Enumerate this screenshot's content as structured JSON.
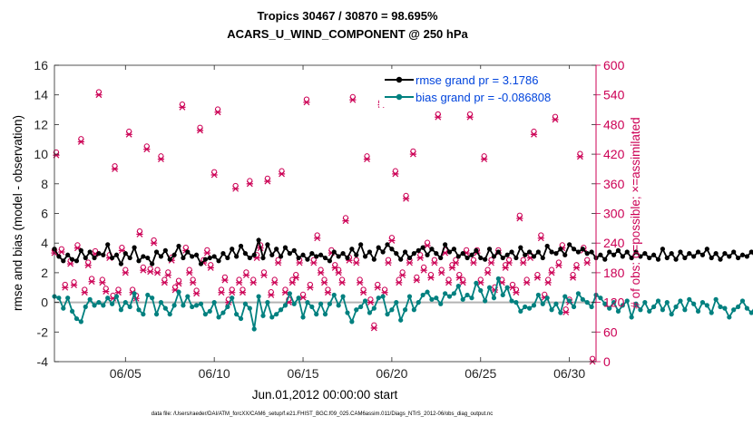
{
  "chart_data": {
    "type": "line",
    "title": "Tropics 30467 / 30870 = 98.695%",
    "subtitle": "ACARS_U_WIND_COMPONENT @ 250 hPa",
    "xlabel": "Jun.01,2012 00:00:00 start",
    "ylabel": "rmse and bias (model - observation)",
    "y2label": "# of obs: o=possible; ×=assimilated",
    "footer": "data file: /Users/raeder/DAI/ATM_forcXX/CAM6_setup/f.e21.FHIST_BGC.f09_025.CAM6assim.011/Diags_NTrS_2012-06/obs_diag_output.nc",
    "xlim": [
      1,
      31.5
    ],
    "ylim": [
      -4,
      16
    ],
    "y2lim": [
      0,
      600
    ],
    "xticks": [
      5,
      10,
      15,
      20,
      25,
      30
    ],
    "xtick_labels": [
      "06/05",
      "06/10",
      "06/15",
      "06/20",
      "06/25",
      "06/30"
    ],
    "yticks": [
      -4,
      -2,
      0,
      2,
      4,
      6,
      8,
      10,
      12,
      14,
      16
    ],
    "ytick_labels": [
      "-4",
      "-2",
      "0",
      "2",
      "4",
      "6",
      "8",
      "10",
      "12",
      "14",
      "16"
    ],
    "y2ticks": [
      0,
      60,
      120,
      180,
      240,
      300,
      360,
      420,
      480,
      540,
      600
    ],
    "y2tick_labels": [
      "0",
      "60",
      "120",
      "180",
      "240",
      "300",
      "360",
      "420",
      "480",
      "540",
      "600"
    ],
    "x_step_days": 0.25,
    "x_start": 1.0,
    "legend_position": "top-right",
    "legend": [
      "rmse grand pr = 3.1786",
      "bias grand pr = -0.086808"
    ],
    "zero_line": 0,
    "colors": {
      "rmse": "#000000",
      "bias": "#00807f",
      "obs": "#cc0055",
      "zero": "#b3b3b3",
      "legend_text": "#0044dd"
    },
    "series": [
      {
        "name": "rmse",
        "axis": "left",
        "values": [
          3.6,
          3.1,
          2.8,
          3.2,
          2.9,
          2.8,
          3.5,
          3.0,
          3.4,
          3.0,
          3.3,
          3.2,
          3.9,
          3.0,
          3.2,
          2.6,
          3.3,
          3.0,
          3.7,
          2.8,
          3.1,
          3.0,
          2.6,
          3.4,
          3.1,
          3.5,
          2.9,
          3.2,
          3.8,
          3.0,
          3.4,
          3.1,
          3.2,
          2.6,
          2.9,
          3.0,
          3.1,
          2.8,
          3.3,
          3.0,
          3.6,
          3.1,
          3.8,
          3.3,
          3.0,
          3.2,
          4.2,
          3.0,
          3.9,
          3.2,
          3.6,
          3.1,
          3.7,
          3.3,
          3.5,
          3.0,
          3.2,
          2.9,
          3.3,
          3.1,
          3.2,
          3.0,
          2.8,
          3.4,
          3.1,
          3.3,
          3.0,
          3.6,
          3.2,
          3.9,
          3.1,
          3.4,
          2.9,
          3.7,
          3.4,
          3.9,
          3.6,
          3.3,
          2.9,
          3.4,
          3.0,
          3.3,
          3.5,
          3.7,
          3.2,
          3.6,
          3.3,
          3.0,
          3.9,
          3.4,
          3.6,
          3.1,
          3.3,
          3.0,
          3.2,
          3.5,
          3.0,
          2.9,
          3.6,
          3.1,
          3.4,
          3.0,
          3.2,
          3.4,
          3.0,
          3.7,
          3.2,
          3.4,
          3.1,
          3.4,
          3.0,
          3.8,
          3.4,
          3.3,
          3.6,
          3.2,
          3.9,
          3.6,
          3.4,
          3.6,
          3.3,
          3.4,
          3.0,
          3.2,
          2.9,
          3.4,
          3.2,
          3.5,
          3.1,
          3.4,
          3.0,
          3.4,
          3.1,
          3.3,
          3.0,
          3.2,
          2.9,
          3.6,
          3.0,
          3.3,
          2.9,
          3.4,
          3.0,
          3.3,
          3.1,
          3.4,
          3.2,
          3.6,
          3.0,
          3.3,
          2.9,
          3.3,
          3.1,
          3.4,
          3.0,
          3.2,
          3.1,
          3.4,
          3.0,
          3.3,
          3.2,
          3.6,
          3.0,
          3.3,
          3.1,
          3.4,
          3.0,
          3.4,
          3.1,
          3.3,
          3.0,
          3.4,
          2.9,
          3.6,
          3.3,
          3.0,
          2.8,
          3.1,
          3.0,
          3.3,
          3.1,
          3.4,
          3.0,
          3.2,
          2.9,
          3.3,
          3.1,
          3.4,
          3.0,
          3.2,
          3.1,
          3.6,
          3.3,
          3.4,
          3.2,
          3.0,
          3.6,
          3.1,
          3.0,
          3.1,
          2.9,
          3.0,
          3.3,
          2.9,
          3.1,
          3.0,
          3.4,
          3.6,
          3.4,
          3.0,
          3.1,
          3.1,
          3.0,
          3.0,
          3.0,
          3.0,
          3.0
        ]
      },
      {
        "name": "bias",
        "axis": "left",
        "values": [
          0.4,
          0.3,
          -0.4,
          0.3,
          -0.6,
          -1.1,
          -1.3,
          -0.3,
          0.2,
          -0.2,
          0.0,
          -0.2,
          0.3,
          -0.1,
          0.4,
          -0.5,
          0.0,
          -0.3,
          0.6,
          -0.5,
          -0.8,
          0.5,
          0.3,
          -0.8,
          0.0,
          -0.4,
          -0.8,
          -0.2,
          0.7,
          -0.2,
          0.4,
          -0.3,
          -0.2,
          -0.1,
          -0.8,
          -0.6,
          0.0,
          -1.0,
          -0.7,
          -0.3,
          0.3,
          -0.8,
          -1.1,
          -0.1,
          -0.4,
          -1.8,
          0.4,
          -0.9,
          0.0,
          -1.0,
          -0.8,
          -0.5,
          -0.2,
          0.6,
          -0.1,
          0.3,
          -1.0,
          0.0,
          -0.3,
          -0.8,
          -0.1,
          -0.8,
          -0.1,
          0.5,
          -0.2,
          0.4,
          -0.7,
          -1.3,
          -0.5,
          -0.3,
          0.1,
          -0.7,
          -0.4,
          0.3,
          0.4,
          -0.8,
          -0.5,
          0.0,
          -1.2,
          -0.5,
          0.4,
          -0.5,
          0.0,
          0.5,
          0.7,
          0.2,
          0.3,
          -0.1,
          0.6,
          0.4,
          0.6,
          1.1,
          0.2,
          0.5,
          0.3,
          1.3,
          0.8,
          0.1,
          1.0,
          0.3,
          1.6,
          0.5,
          1.0,
          0.1,
          0.0,
          -0.6,
          -0.3,
          -0.4,
          -0.2,
          0.5,
          -0.1,
          0.3,
          -0.5,
          -0.1,
          -0.7,
          0.4,
          0.1,
          -0.3,
          0.6,
          0.2,
          0.0,
          -0.3,
          0.5,
          0.3,
          -0.1,
          -0.4,
          0.0,
          -0.6,
          -0.2,
          0.1,
          -1.0,
          -0.1,
          -0.5,
          0.0,
          -0.6,
          -0.3,
          0.1,
          -0.5,
          0.0,
          -0.8,
          -0.3,
          0.1,
          -0.5,
          0.2,
          -0.1,
          -0.6,
          0.0,
          -0.2,
          -0.7,
          0.2,
          -0.3,
          -0.4,
          -1.0,
          -0.5,
          -0.3,
          0.1,
          -0.4,
          -0.7,
          -0.2,
          0.0,
          -0.5,
          -1.2,
          -0.3,
          0.2,
          -0.7,
          -0.2,
          0.0,
          -0.7,
          -0.2,
          -0.4,
          0.2,
          -0.6,
          0.1,
          -0.5,
          -0.9,
          -0.3,
          -0.7,
          -0.4,
          -0.6,
          -0.2,
          -0.7,
          0.1,
          -0.3,
          -0.5,
          -0.2,
          -0.6,
          -0.3,
          0.0,
          -0.4,
          -0.6,
          -0.1,
          -0.3,
          -0.4,
          -1.0,
          -0.2,
          0.0,
          -0.5,
          -0.2,
          -0.4,
          -0.1,
          0.1,
          -0.3,
          -0.2,
          -0.3,
          -0.1,
          -0.2,
          -0.1,
          -0.2,
          -0.1,
          -0.2,
          -0.1,
          -0.1,
          -0.1
        ]
      },
      {
        "name": "obs possible / assimilated",
        "axis": "right",
        "points": [
          [
            1.0,
            220
          ],
          [
            1.1,
            418
          ],
          [
            1.4,
            222
          ],
          [
            1.6,
            150
          ],
          [
            1.9,
            198
          ],
          [
            2.1,
            155
          ],
          [
            2.3,
            230
          ],
          [
            2.5,
            445
          ],
          [
            2.7,
            140
          ],
          [
            2.9,
            195
          ],
          [
            3.1,
            162
          ],
          [
            3.3,
            218
          ],
          [
            3.5,
            540
          ],
          [
            3.7,
            160
          ],
          [
            3.9,
            142
          ],
          [
            4.1,
            210
          ],
          [
            4.3,
            128
          ],
          [
            4.4,
            390
          ],
          [
            4.6,
            140
          ],
          [
            4.8,
            225
          ],
          [
            5.0,
            180
          ],
          [
            5.2,
            460
          ],
          [
            5.4,
            140
          ],
          [
            5.6,
            128
          ],
          [
            5.8,
            258
          ],
          [
            6.0,
            185
          ],
          [
            6.2,
            430
          ],
          [
            6.4,
            182
          ],
          [
            6.6,
            240
          ],
          [
            6.8,
            180
          ],
          [
            7.0,
            410
          ],
          [
            7.2,
            160
          ],
          [
            7.4,
            175
          ],
          [
            7.6,
            205
          ],
          [
            7.8,
            145
          ],
          [
            8.0,
            158
          ],
          [
            8.2,
            515
          ],
          [
            8.4,
            225
          ],
          [
            8.6,
            180
          ],
          [
            8.8,
            160
          ],
          [
            9.0,
            138
          ],
          [
            9.2,
            468
          ],
          [
            9.4,
            200
          ],
          [
            9.6,
            220
          ],
          [
            9.8,
            190
          ],
          [
            10.0,
            378
          ],
          [
            10.2,
            505
          ],
          [
            10.4,
            140
          ],
          [
            10.6,
            165
          ],
          [
            10.8,
            120
          ],
          [
            11.0,
            140
          ],
          [
            11.2,
            350
          ],
          [
            11.4,
            160
          ],
          [
            11.6,
            140
          ],
          [
            11.8,
            175
          ],
          [
            12.0,
            360
          ],
          [
            12.2,
            160
          ],
          [
            12.4,
            210
          ],
          [
            12.6,
            230
          ],
          [
            12.8,
            175
          ],
          [
            13.0,
            365
          ],
          [
            13.2,
            135
          ],
          [
            13.4,
            160
          ],
          [
            13.6,
            200
          ],
          [
            13.8,
            380
          ],
          [
            14.0,
            140
          ],
          [
            14.2,
            120
          ],
          [
            14.4,
            160
          ],
          [
            14.6,
            170
          ],
          [
            14.8,
            200
          ],
          [
            15.0,
            130
          ],
          [
            15.2,
            525
          ],
          [
            15.4,
            150
          ],
          [
            15.6,
            200
          ],
          [
            15.8,
            250
          ],
          [
            16.0,
            180
          ],
          [
            16.2,
            160
          ],
          [
            16.4,
            140
          ],
          [
            16.6,
            220
          ],
          [
            16.8,
            190
          ],
          [
            17.0,
            180
          ],
          [
            17.2,
            160
          ],
          [
            17.4,
            285
          ],
          [
            17.6,
            205
          ],
          [
            17.8,
            530
          ],
          [
            18.0,
            200
          ],
          [
            18.2,
            160
          ],
          [
            18.4,
            140
          ],
          [
            18.6,
            410
          ],
          [
            18.8,
            120
          ],
          [
            19.0,
            68
          ],
          [
            19.2,
            150
          ],
          [
            19.4,
            520
          ],
          [
            19.6,
            140
          ],
          [
            19.8,
            200
          ],
          [
            20.0,
            245
          ],
          [
            20.2,
            380
          ],
          [
            20.4,
            160
          ],
          [
            20.6,
            175
          ],
          [
            20.8,
            330
          ],
          [
            21.0,
            200
          ],
          [
            21.2,
            420
          ],
          [
            21.4,
            165
          ],
          [
            21.6,
            210
          ],
          [
            21.8,
            185
          ],
          [
            22.0,
            235
          ],
          [
            22.2,
            170
          ],
          [
            22.4,
            200
          ],
          [
            22.6,
            495
          ],
          [
            22.8,
            180
          ],
          [
            23.0,
            220
          ],
          [
            23.2,
            160
          ],
          [
            23.4,
            190
          ],
          [
            23.6,
            200
          ],
          [
            23.8,
            170
          ],
          [
            24.0,
            160
          ],
          [
            24.2,
            220
          ],
          [
            24.4,
            495
          ],
          [
            24.6,
            200
          ],
          [
            24.8,
            220
          ],
          [
            25.0,
            160
          ],
          [
            25.2,
            410
          ],
          [
            25.4,
            180
          ],
          [
            25.6,
            200
          ],
          [
            25.8,
            145
          ],
          [
            26.0,
            220
          ],
          [
            26.2,
            160
          ],
          [
            26.4,
            190
          ],
          [
            26.6,
            200
          ],
          [
            26.8,
            150
          ],
          [
            27.0,
            140
          ],
          [
            27.2,
            290
          ],
          [
            27.4,
            200
          ],
          [
            27.6,
            160
          ],
          [
            27.8,
            210
          ],
          [
            28.0,
            460
          ],
          [
            28.2,
            170
          ],
          [
            28.4,
            250
          ],
          [
            28.6,
            130
          ],
          [
            28.8,
            160
          ],
          [
            29.0,
            180
          ],
          [
            29.2,
            490
          ],
          [
            29.4,
            195
          ],
          [
            29.6,
            230
          ],
          [
            29.8,
            100
          ],
          [
            30.0,
            120
          ],
          [
            30.2,
            170
          ],
          [
            30.4,
            190
          ],
          [
            30.6,
            415
          ],
          [
            30.8,
            225
          ],
          [
            31.0,
            200
          ],
          [
            31.3,
            0
          ]
        ]
      }
    ]
  }
}
